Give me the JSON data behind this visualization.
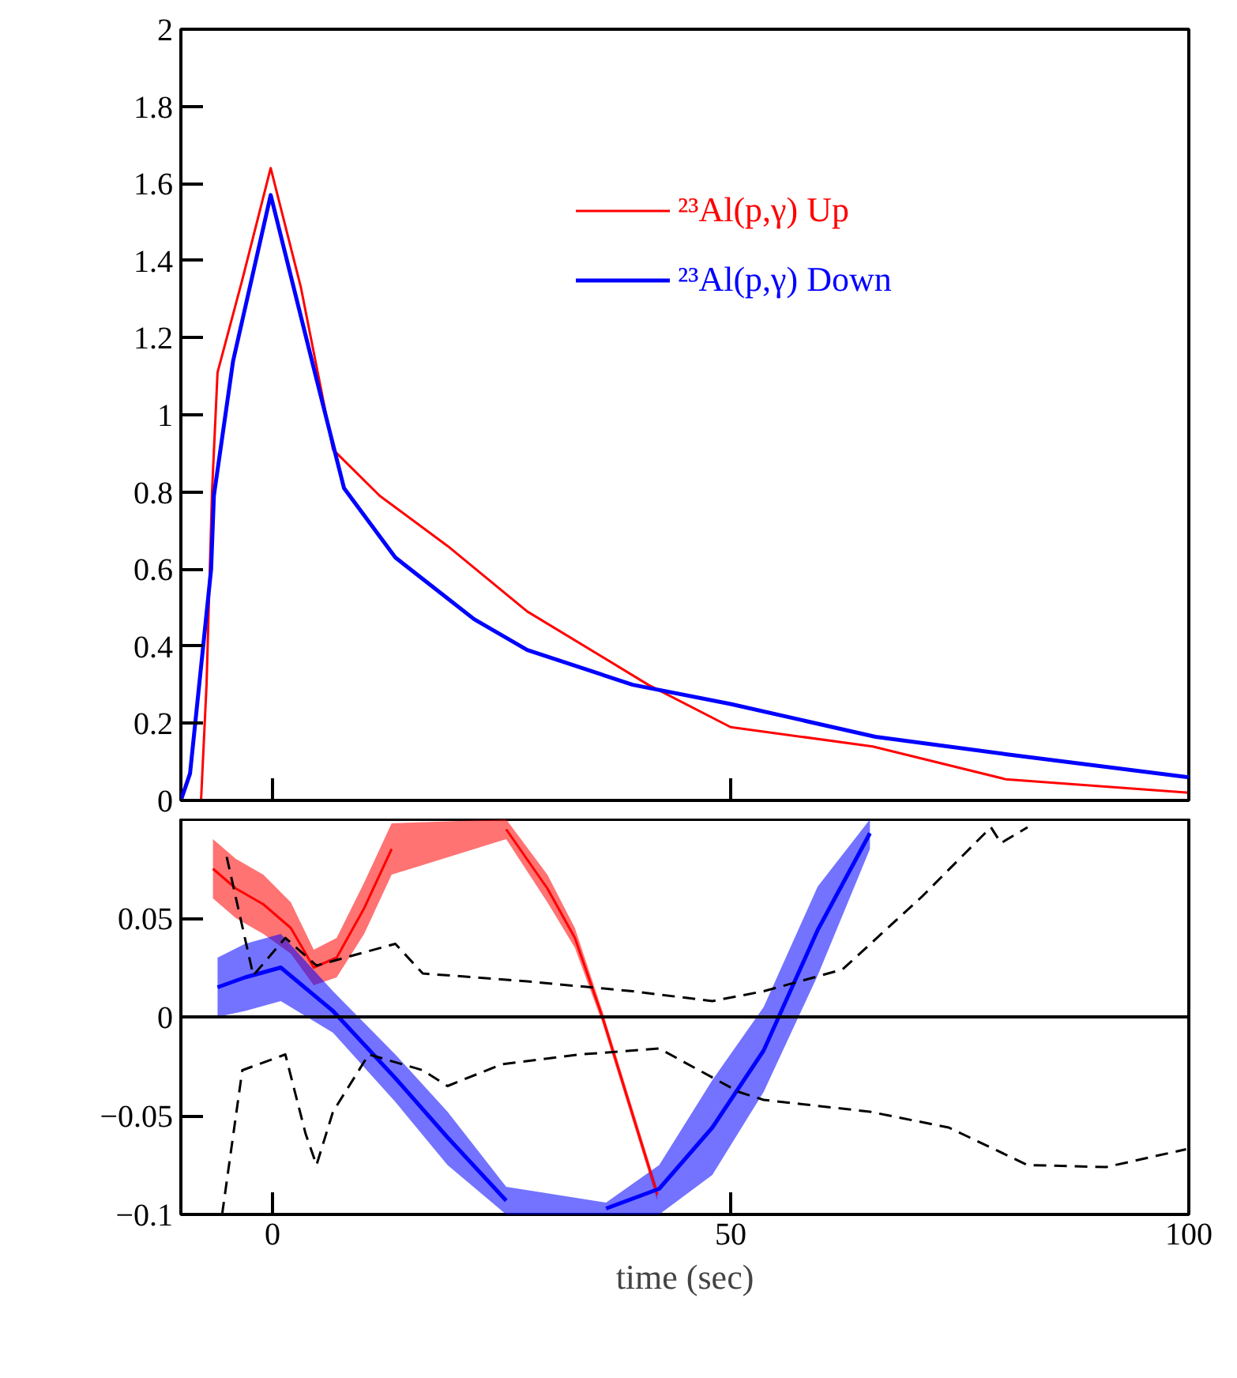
{
  "chart_data": [
    {
      "type": "line",
      "xlim": [
        -10,
        100
      ],
      "xticks": [
        0,
        50,
        100
      ],
      "tick_labels": "y",
      "ylim": [
        0,
        2
      ],
      "yticks": [
        0,
        {
          "value": 0.2,
          "label": "0.2"
        },
        {
          "value": 0.4,
          "label": "0.4"
        },
        {
          "value": 0.6,
          "label": "0.6"
        },
        {
          "value": 0.8,
          "label": "0.8"
        },
        1,
        {
          "value": 1.2,
          "label": "1.2"
        },
        {
          "value": 1.4,
          "label": "1.4"
        },
        {
          "value": 1.6,
          "label": "1.6"
        },
        {
          "value": 1.8,
          "label": "1.8"
        },
        2
      ],
      "grid": false,
      "legend": "top right",
      "series": [
        {
          "name": "²³Al(p,γ) Up",
          "color": "#ff0000",
          "x": [
            -7.8,
            -7.2,
            -6.6,
            -6,
            -3.3,
            -0.2,
            3.1,
            6.6,
            11.7,
            19.1,
            27.8,
            41,
            50,
            65.5,
            80,
            100
          ],
          "values": [
            0,
            0.3,
            0.8,
            1.11,
            1.35,
            1.64,
            1.33,
            0.91,
            0.79,
            0.66,
            0.49,
            0.3,
            0.19,
            0.14,
            0.055,
            0.02
          ]
        },
        {
          "name": "²³Al(p,γ) Down",
          "color": "#0000ff",
          "x": [
            -10,
            -9,
            -6.7,
            -6.4,
            -4.3,
            -0.2,
            4.3,
            7.8,
            13.4,
            22,
            27.8,
            39.3,
            50,
            65.8,
            80,
            100
          ],
          "values": [
            0,
            0.07,
            0.6,
            0.79,
            1.14,
            1.57,
            1.14,
            0.81,
            0.63,
            0.47,
            0.39,
            0.3,
            0.25,
            0.165,
            0.12,
            0.06
          ]
        }
      ]
    },
    {
      "type": "line",
      "xlim": [
        -10,
        100
      ],
      "xticks": [
        0,
        50,
        100
      ],
      "ylim": [
        -0.1,
        0.1
      ],
      "yticks": [
        {
          "value": -0.1,
          "label": "−0.1"
        },
        {
          "value": -0.05,
          "label": "−0.05"
        },
        0,
        {
          "value": 0.05,
          "label": "0.05"
        }
      ],
      "xlabel": "time (sec)",
      "grid": false,
      "ref_lines": [
        {
          "axis": "y",
          "value": 0,
          "color": "#000000",
          "line_style": "solid"
        }
      ],
      "series": [
        {
          "color": "#ff0000",
          "x": [
            -6.5,
            -4,
            -1,
            2,
            4.5,
            7,
            10,
            13,
            20,
            25.5,
            30,
            33,
            36,
            39,
            42
          ],
          "values": [
            0.075,
            0.065,
            0.057,
            0.045,
            0.025,
            0.03,
            0.055,
            0.085,
            null,
            0.095,
            0.065,
            0.04,
            0.0,
            -0.045,
            -0.09
          ],
          "lower": [
            0.06,
            0.05,
            0.042,
            0.032,
            0.016,
            0.02,
            0.042,
            0.072,
            null,
            0.09,
            0.058,
            0.035,
            -0.003,
            -0.048,
            -0.093
          ],
          "upper": [
            0.09,
            0.08,
            0.072,
            0.058,
            0.034,
            0.04,
            0.068,
            0.098,
            null,
            0.1,
            0.072,
            0.045,
            0.003,
            -0.042,
            -0.087
          ]
        },
        {
          "color": "#0000ff",
          "x": [
            -6,
            -3,
            0.9,
            6.6,
            13.4,
            19.1,
            25.5,
            30,
            36.4,
            42.2,
            48,
            53.6,
            59.5,
            65.2
          ],
          "values": [
            0.015,
            0.02,
            0.025,
            0.003,
            -0.031,
            -0.061,
            -0.093,
            null,
            -0.097,
            -0.087,
            -0.056,
            -0.017,
            0.044,
            0.093
          ],
          "lower": [
            0.0,
            0.003,
            0.008,
            -0.008,
            -0.043,
            -0.075,
            -0.1,
            null,
            -0.1,
            -0.1,
            -0.08,
            -0.038,
            0.021,
            0.085
          ],
          "upper": [
            0.03,
            0.037,
            0.042,
            0.013,
            -0.019,
            -0.048,
            -0.086,
            null,
            -0.094,
            -0.075,
            -0.032,
            0.005,
            0.066,
            0.1
          ]
        },
        {
          "color": "#000000",
          "line_style": "dashed",
          "x": [
            -5,
            -2.1,
            1.4,
            4.8,
            13.4,
            16.4,
            27.8,
            39.3,
            48,
            53.6,
            62.2,
            70.9,
            78.4,
            79.5,
            82.4
          ],
          "values": [
            0.081,
            0.021,
            0.04,
            0.026,
            0.037,
            0.022,
            0.018,
            0.013,
            0.008,
            0.013,
            0.024,
            0.061,
            0.096,
            0.088,
            0.096
          ]
        },
        {
          "color": "#000000",
          "line_style": "dashed",
          "x": [
            -5.5,
            -3.3,
            1.4,
            3.6,
            4.8,
            6.6,
            10.5,
            16.4,
            19.1,
            25,
            33.6,
            42.2,
            50.9,
            53.6,
            65.2,
            73.8,
            82.4,
            91,
            99.7
          ],
          "values": [
            -0.1,
            -0.027,
            -0.019,
            -0.059,
            -0.075,
            -0.048,
            -0.019,
            -0.027,
            -0.035,
            -0.024,
            -0.019,
            -0.016,
            -0.038,
            -0.042,
            -0.048,
            -0.056,
            -0.075,
            -0.076,
            -0.067
          ]
        }
      ]
    }
  ]
}
